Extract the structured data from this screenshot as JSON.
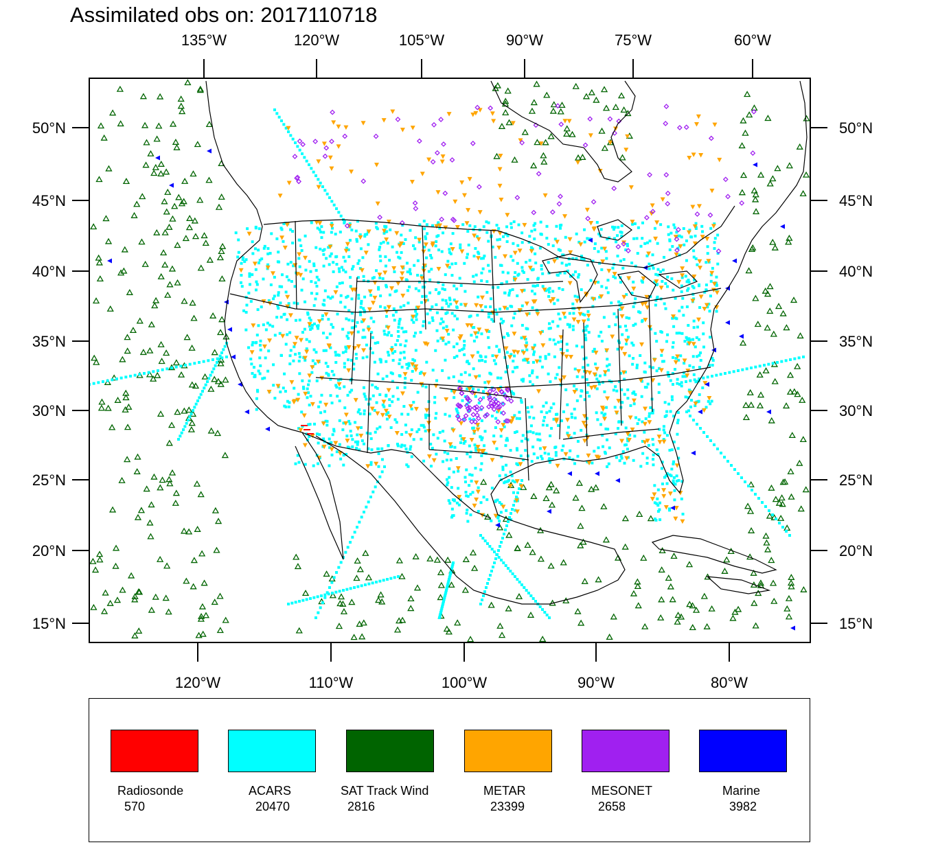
{
  "title": "Assimilated obs on: 2017110718",
  "map": {
    "lat_labels": [
      "50°N",
      "45°N",
      "40°N",
      "35°N",
      "30°N",
      "25°N",
      "20°N",
      "15°N"
    ],
    "lat_values": [
      50,
      45,
      40,
      35,
      30,
      25,
      20,
      15
    ],
    "top_lon_labels": [
      "135°W",
      "120°W",
      "105°W",
      "90°W",
      "75°W",
      "60°W"
    ],
    "bottom_lon_labels": [
      "120°W",
      "110°W",
      "100°W",
      "90°W",
      "80°W"
    ]
  },
  "legend": [
    {
      "label": "Radiosonde",
      "count": "570",
      "color": "#ff0000"
    },
    {
      "label": "ACARS",
      "count": "20470",
      "color": "#00ffff"
    },
    {
      "label": "SAT Track Wind",
      "count": "2816",
      "color": "#006400"
    },
    {
      "label": "METAR",
      "count": "23399",
      "color": "#ffa500"
    },
    {
      "label": "MESONET",
      "count": "2658",
      "color": "#a020f0"
    },
    {
      "label": "Marine",
      "count": "3982",
      "color": "#0000ff"
    }
  ]
}
